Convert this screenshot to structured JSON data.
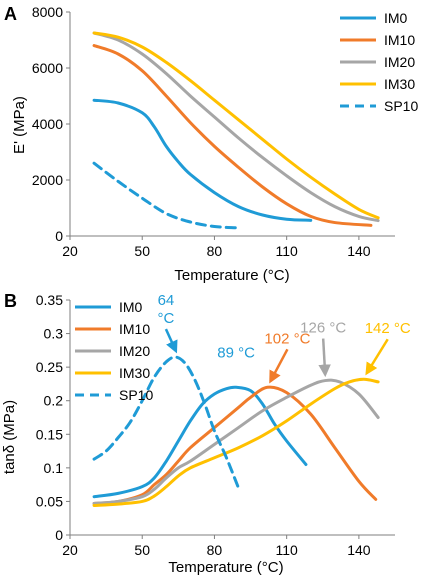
{
  "chart_data": [
    {
      "panel_label": "A",
      "type": "line",
      "xlabel": "Temperature (°C)",
      "ylabel": "E' (MPa)",
      "xlim": [
        20,
        155
      ],
      "ylim": [
        0,
        8000
      ],
      "xticks": [
        20,
        50,
        80,
        110,
        140
      ],
      "yticks": [
        0,
        2000,
        4000,
        6000,
        8000
      ],
      "grid": false,
      "legend_position": "top-right",
      "series": [
        {
          "name": "IM0",
          "color": "#1f9bd6",
          "dash": false,
          "x": [
            30,
            40,
            50,
            55,
            60,
            65,
            70,
            80,
            90,
            100,
            110,
            120
          ],
          "y": [
            4850,
            4750,
            4400,
            3900,
            3200,
            2650,
            2200,
            1550,
            1050,
            750,
            600,
            560
          ]
        },
        {
          "name": "IM10",
          "color": "#f07b2a",
          "dash": false,
          "x": [
            30,
            40,
            50,
            60,
            70,
            80,
            90,
            100,
            110,
            120,
            130,
            145
          ],
          "y": [
            6800,
            6500,
            5900,
            5000,
            4050,
            3200,
            2450,
            1750,
            1150,
            700,
            480,
            380
          ]
        },
        {
          "name": "IM20",
          "color": "#a6a6a6",
          "dash": false,
          "x": [
            30,
            40,
            50,
            60,
            70,
            80,
            90,
            100,
            110,
            120,
            130,
            140,
            148
          ],
          "y": [
            7250,
            7000,
            6500,
            5800,
            5000,
            4250,
            3500,
            2800,
            2150,
            1550,
            1050,
            700,
            550
          ]
        },
        {
          "name": "IM30",
          "color": "#ffc000",
          "dash": false,
          "x": [
            30,
            40,
            50,
            60,
            70,
            80,
            90,
            100,
            110,
            120,
            130,
            140,
            148
          ],
          "y": [
            7250,
            7100,
            6750,
            6200,
            5550,
            4850,
            4150,
            3450,
            2750,
            2100,
            1500,
            950,
            650
          ]
        },
        {
          "name": "SP10",
          "color": "#1f9bd6",
          "dash": true,
          "x": [
            30,
            40,
            50,
            60,
            70,
            80,
            90
          ],
          "y": [
            2600,
            1950,
            1350,
            800,
            500,
            340,
            290
          ]
        }
      ]
    },
    {
      "panel_label": "B",
      "type": "line",
      "xlabel": "Temperature (°C)",
      "ylabel": "tanδ (MPa)",
      "xlim": [
        20,
        155
      ],
      "ylim": [
        0,
        0.35
      ],
      "xticks": [
        20,
        50,
        80,
        110,
        140
      ],
      "yticks": [
        0,
        0.05,
        0.1,
        0.15,
        0.2,
        0.25,
        0.3,
        0.35
      ],
      "grid": false,
      "legend_position": "top-left",
      "series": [
        {
          "name": "IM0",
          "color": "#1f9bd6",
          "dash": false,
          "x": [
            30,
            40,
            50,
            55,
            60,
            65,
            70,
            75,
            80,
            85,
            89,
            95,
            100,
            105,
            110,
            118
          ],
          "y": [
            0.057,
            0.062,
            0.072,
            0.085,
            0.11,
            0.14,
            0.17,
            0.195,
            0.21,
            0.218,
            0.22,
            0.215,
            0.195,
            0.165,
            0.14,
            0.105
          ]
        },
        {
          "name": "IM10",
          "color": "#f07b2a",
          "dash": false,
          "x": [
            30,
            40,
            50,
            55,
            60,
            65,
            70,
            80,
            90,
            95,
            102,
            110,
            120,
            130,
            140,
            147
          ],
          "y": [
            0.047,
            0.05,
            0.06,
            0.075,
            0.09,
            0.11,
            0.13,
            0.16,
            0.19,
            0.205,
            0.22,
            0.212,
            0.18,
            0.13,
            0.08,
            0.053
          ]
        },
        {
          "name": "IM20",
          "color": "#a6a6a6",
          "dash": false,
          "x": [
            30,
            40,
            50,
            55,
            60,
            65,
            70,
            80,
            90,
            100,
            110,
            120,
            126,
            132,
            140,
            148
          ],
          "y": [
            0.047,
            0.05,
            0.057,
            0.068,
            0.085,
            0.1,
            0.11,
            0.135,
            0.16,
            0.185,
            0.205,
            0.223,
            0.23,
            0.228,
            0.21,
            0.175
          ]
        },
        {
          "name": "IM30",
          "color": "#ffc000",
          "dash": false,
          "x": [
            30,
            40,
            50,
            55,
            60,
            65,
            70,
            80,
            90,
            100,
            110,
            120,
            130,
            136,
            142,
            148
          ],
          "y": [
            0.044,
            0.046,
            0.05,
            0.058,
            0.072,
            0.088,
            0.1,
            0.115,
            0.13,
            0.148,
            0.17,
            0.195,
            0.218,
            0.228,
            0.232,
            0.228
          ]
        },
        {
          "name": "SP10",
          "color": "#1f9bd6",
          "dash": true,
          "x": [
            30,
            35,
            40,
            45,
            50,
            55,
            60,
            64,
            68,
            72,
            76,
            80,
            85,
            90
          ],
          "y": [
            0.113,
            0.125,
            0.145,
            0.168,
            0.2,
            0.235,
            0.258,
            0.265,
            0.255,
            0.23,
            0.195,
            0.155,
            0.115,
            0.07
          ]
        }
      ],
      "annotations": [
        {
          "text": "64\n°C",
          "color": "#1f9bd6",
          "target_x": 64,
          "target_y": 0.265,
          "arrow": true
        },
        {
          "text": "89 °C",
          "color": "#1f9bd6",
          "target_x": 89,
          "target_y": 0.22,
          "arrow": false
        },
        {
          "text": "102 °C",
          "color": "#f07b2a",
          "target_x": 102,
          "target_y": 0.22,
          "arrow": true
        },
        {
          "text": "126 °C",
          "color": "#a6a6a6",
          "target_x": 126,
          "target_y": 0.23,
          "arrow": true
        },
        {
          "text": "142 °C",
          "color": "#ffc000",
          "target_x": 142,
          "target_y": 0.232,
          "arrow": true
        }
      ]
    }
  ]
}
